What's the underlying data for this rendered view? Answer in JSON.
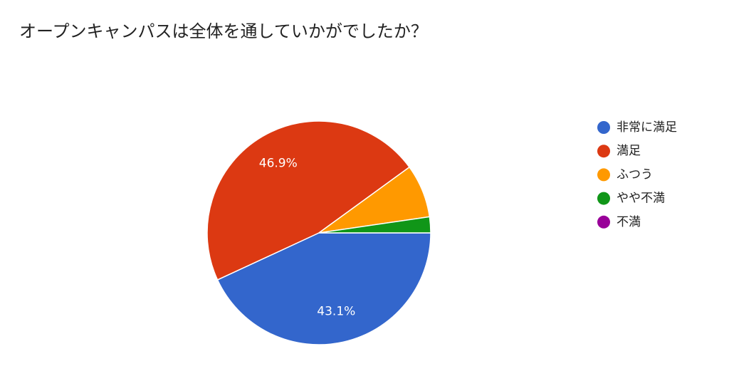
{
  "chart_data": {
    "type": "pie",
    "title": "オープンキャンパスは全体を通していかがでしたか？",
    "categories": [
      "非常に満足",
      "満足",
      "ふつう",
      "やや不満",
      "不満"
    ],
    "values": [
      43.1,
      46.9,
      7.7,
      2.3,
      0
    ],
    "value_labels": [
      "43.1%",
      "46.9%",
      null,
      null,
      null
    ],
    "colors": [
      "#3366cc",
      "#dc3912",
      "#ff9900",
      "#109618",
      "#990099"
    ],
    "legend": "right"
  }
}
